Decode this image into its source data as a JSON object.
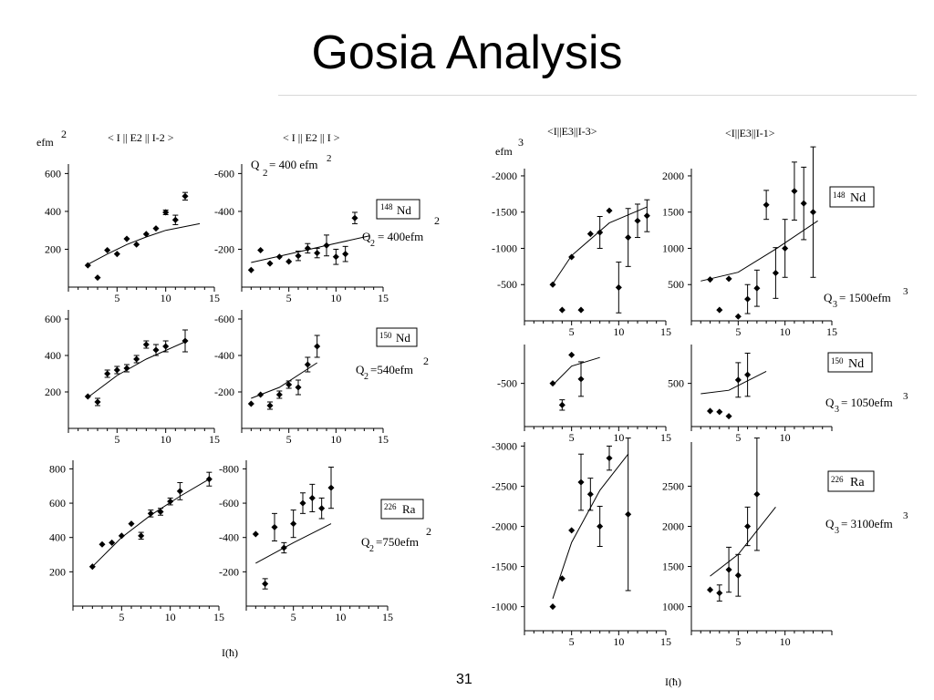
{
  "slide": {
    "title": "Gosia Analysis",
    "page_number": "31"
  },
  "chart_data": [
    {
      "id": "e2_I-2_148",
      "type": "scatter",
      "panel_title": "< I || E2 || I-2 >",
      "unit": "efm",
      "unit_power": "2",
      "x_ticks": [
        "5",
        "10",
        "15"
      ],
      "y_ticks": [
        "600",
        "400",
        "200"
      ],
      "xlim": [
        0,
        15
      ],
      "ylim": [
        0,
        650
      ],
      "points": [
        [
          2,
          115
        ],
        [
          3,
          50
        ],
        [
          4,
          195
        ],
        [
          5,
          175
        ],
        [
          6,
          255
        ],
        [
          7,
          225
        ],
        [
          8,
          280
        ],
        [
          9,
          310
        ],
        [
          10,
          395
        ],
        [
          11,
          355
        ],
        [
          12,
          480
        ]
      ],
      "errors": [
        0,
        0,
        0,
        0,
        0,
        0,
        0,
        0,
        12,
        25,
        20
      ],
      "curve": [
        [
          2,
          120
        ],
        [
          4,
          175
        ],
        [
          6,
          225
        ],
        [
          8,
          265
        ],
        [
          10,
          300
        ],
        [
          13.5,
          335
        ]
      ]
    },
    {
      "id": "e2_I_148",
      "type": "scatter",
      "panel_title": "< I || E2 || I >",
      "q_value": "Q 2 = 400 efm 2",
      "x_ticks": [
        "5",
        "10",
        "15"
      ],
      "y_ticks": [
        "-600",
        "-400",
        "-200"
      ],
      "xlim": [
        0,
        15
      ],
      "ylim": [
        0,
        -650
      ],
      "points": [
        [
          1,
          -90
        ],
        [
          2,
          -195
        ],
        [
          3,
          -125
        ],
        [
          4,
          -160
        ],
        [
          5,
          -135
        ],
        [
          6,
          -165
        ],
        [
          7,
          -205
        ],
        [
          8,
          -180
        ],
        [
          9,
          -220
        ],
        [
          10,
          -160
        ],
        [
          11,
          -175
        ],
        [
          12,
          -365
        ]
      ],
      "errors": [
        0,
        0,
        0,
        0,
        0,
        25,
        25,
        25,
        55,
        40,
        40,
        30
      ],
      "curve": [
        [
          1,
          -130
        ],
        [
          5,
          -175
        ],
        [
          9,
          -220
        ],
        [
          13.5,
          -270
        ]
      ]
    },
    {
      "id": "e2_I-2_150",
      "type": "scatter",
      "unit": "",
      "x_ticks": [
        "5",
        "10",
        "15"
      ],
      "y_ticks": [
        "600",
        "400",
        "200"
      ],
      "xlim": [
        0,
        15
      ],
      "ylim": [
        0,
        650
      ],
      "points": [
        [
          2,
          175
        ],
        [
          3,
          145
        ],
        [
          4,
          300
        ],
        [
          5,
          320
        ],
        [
          6,
          330
        ],
        [
          7,
          380
        ],
        [
          8,
          460
        ],
        [
          9,
          430
        ],
        [
          10,
          450
        ],
        [
          12,
          480
        ]
      ],
      "errors": [
        0,
        20,
        20,
        20,
        20,
        20,
        20,
        30,
        30,
        60
      ],
      "curve": [
        [
          2,
          170
        ],
        [
          5,
          290
        ],
        [
          8,
          380
        ],
        [
          12,
          475
        ]
      ]
    },
    {
      "id": "e2_I_150",
      "type": "scatter",
      "x_ticks": [
        "5",
        "10",
        "15"
      ],
      "y_ticks": [
        "-600",
        "-400",
        "-200"
      ],
      "xlim": [
        0,
        15
      ],
      "ylim": [
        0,
        -650
      ],
      "points": [
        [
          1,
          -135
        ],
        [
          2,
          -185
        ],
        [
          3,
          -125
        ],
        [
          4,
          -185
        ],
        [
          5,
          -240
        ],
        [
          6,
          -225
        ],
        [
          7,
          -350
        ],
        [
          8,
          -450
        ]
      ],
      "errors": [
        0,
        0,
        20,
        20,
        20,
        40,
        40,
        60
      ],
      "curve": [
        [
          1,
          -165
        ],
        [
          4,
          -225
        ],
        [
          8,
          -360
        ]
      ]
    },
    {
      "id": "e2_I-2_226",
      "type": "scatter",
      "x_ticks": [
        "5",
        "10",
        "15"
      ],
      "y_ticks": [
        "800",
        "600",
        "400",
        "200"
      ],
      "xlim": [
        0,
        15
      ],
      "ylim": [
        0,
        850
      ],
      "points": [
        [
          2,
          230
        ],
        [
          3,
          360
        ],
        [
          4,
          370
        ],
        [
          5,
          410
        ],
        [
          6,
          480
        ],
        [
          7,
          410
        ],
        [
          8,
          540
        ],
        [
          9,
          550
        ],
        [
          10,
          610
        ],
        [
          11,
          670
        ],
        [
          14,
          740
        ]
      ],
      "errors": [
        0,
        0,
        0,
        0,
        0,
        20,
        20,
        20,
        20,
        50,
        40
      ],
      "curve": [
        [
          2,
          230
        ],
        [
          5,
          400
        ],
        [
          8,
          530
        ],
        [
          11,
          640
        ],
        [
          14,
          740
        ]
      ]
    },
    {
      "id": "e2_I_226",
      "type": "scatter",
      "x_ticks": [
        "5",
        "10",
        "15"
      ],
      "y_ticks": [
        "-800",
        "-600",
        "-400",
        "-200"
      ],
      "xlim": [
        0,
        15
      ],
      "ylim": [
        0,
        -850
      ],
      "points": [
        [
          1,
          -420
        ],
        [
          2,
          -130
        ],
        [
          3,
          -460
        ],
        [
          4,
          -340
        ],
        [
          5,
          -480
        ],
        [
          6,
          -600
        ],
        [
          7,
          -630
        ],
        [
          8,
          -570
        ],
        [
          9,
          -690
        ]
      ],
      "errors": [
        0,
        30,
        80,
        30,
        80,
        60,
        80,
        60,
        120
      ],
      "curve": [
        [
          1,
          -250
        ],
        [
          5,
          -370
        ],
        [
          9,
          -480
        ]
      ]
    },
    {
      "id": "e3_I-3_148",
      "type": "scatter",
      "panel_title": "<I||E3||I-3>",
      "unit": "efm",
      "unit_power": "3",
      "x_ticks": [
        "5",
        "10",
        "15"
      ],
      "y_ticks": [
        "-2000",
        "-1500",
        "-1000",
        "-500"
      ],
      "xlim": [
        0,
        15
      ],
      "ylim": [
        0,
        -2100
      ],
      "points": [
        [
          3,
          -500
        ],
        [
          4,
          -150
        ],
        [
          5,
          -880
        ],
        [
          6,
          -150
        ],
        [
          7,
          -1200
        ],
        [
          8,
          -1220
        ],
        [
          9,
          -1520
        ],
        [
          10,
          -460
        ],
        [
          11,
          -1150
        ],
        [
          12,
          -1380
        ],
        [
          13,
          -1450
        ]
      ],
      "errors": [
        0,
        0,
        0,
        0,
        0,
        220,
        0,
        350,
        400,
        230,
        220
      ],
      "curve": [
        [
          3,
          -510
        ],
        [
          5,
          -900
        ],
        [
          9,
          -1350
        ],
        [
          13,
          -1570
        ]
      ]
    },
    {
      "id": "e3_I-1_148",
      "type": "scatter",
      "panel_title": "<I||E3||I-1>",
      "x_ticks": [
        "5",
        "10",
        "15"
      ],
      "y_ticks": [
        "2000",
        "1500",
        "1000",
        "500"
      ],
      "xlim": [
        0,
        15
      ],
      "ylim": [
        0,
        2100
      ],
      "points": [
        [
          2,
          570
        ],
        [
          3,
          150
        ],
        [
          4,
          580
        ],
        [
          5,
          60
        ],
        [
          6,
          300
        ],
        [
          7,
          450
        ],
        [
          8,
          1600
        ],
        [
          9,
          660
        ],
        [
          10,
          1000
        ],
        [
          11,
          1790
        ],
        [
          12,
          1620
        ],
        [
          13,
          1500
        ]
      ],
      "errors": [
        0,
        0,
        0,
        0,
        200,
        250,
        200,
        350,
        400,
        400,
        500,
        900
      ],
      "curve": [
        [
          1,
          550
        ],
        [
          5,
          670
        ],
        [
          9,
          990
        ],
        [
          13.5,
          1380
        ]
      ]
    },
    {
      "id": "e3_I-3_150",
      "type": "scatter",
      "x_ticks": [
        "5",
        "10",
        "15"
      ],
      "y_ticks": [
        "-500"
      ],
      "xlim": [
        0,
        15
      ],
      "ylim": [
        0,
        -950
      ],
      "points": [
        [
          3,
          -500
        ],
        [
          4,
          -250
        ],
        [
          5,
          -830
        ],
        [
          6,
          -550
        ]
      ],
      "errors": [
        0,
        60,
        0,
        200
      ],
      "curve": [
        [
          3,
          -480
        ],
        [
          5,
          -700
        ],
        [
          8,
          -800
        ]
      ]
    },
    {
      "id": "e3_I-1_150",
      "type": "scatter",
      "x_ticks": [
        "5",
        "10"
      ],
      "y_ticks": [
        "500"
      ],
      "xlim": [
        0,
        15
      ],
      "ylim": [
        0,
        950
      ],
      "points": [
        [
          2,
          180
        ],
        [
          3,
          170
        ],
        [
          4,
          120
        ],
        [
          5,
          540
        ],
        [
          6,
          600
        ]
      ],
      "errors": [
        0,
        0,
        0,
        200,
        250
      ],
      "curve": [
        [
          1,
          380
        ],
        [
          4,
          420
        ],
        [
          8,
          640
        ]
      ]
    },
    {
      "id": "e3_I-3_226",
      "type": "scatter",
      "x_ticks": [
        "5",
        "10",
        "15"
      ],
      "y_ticks": [
        "-3000",
        "-2500",
        "-2000",
        "-1500",
        "-1000"
      ],
      "xlim": [
        0,
        15
      ],
      "ylim": [
        -700,
        -3050
      ],
      "points": [
        [
          3,
          -1000
        ],
        [
          4,
          -1350
        ],
        [
          5,
          -1950
        ],
        [
          6,
          -2550
        ],
        [
          7,
          -2400
        ],
        [
          8,
          -2000
        ],
        [
          9,
          -2850
        ],
        [
          11,
          -2150
        ]
      ],
      "errors": [
        0,
        0,
        0,
        350,
        200,
        250,
        150,
        950
      ],
      "curve": [
        [
          3,
          -1100
        ],
        [
          5,
          -1800
        ],
        [
          8,
          -2450
        ],
        [
          11,
          -2900
        ]
      ]
    },
    {
      "id": "e3_I-1_226",
      "type": "scatter",
      "x_ticks": [
        "5",
        "10"
      ],
      "y_ticks": [
        "2500",
        "2000",
        "1500",
        "1000"
      ],
      "xlim": [
        0,
        15
      ],
      "ylim": [
        700,
        3050
      ],
      "points": [
        [
          2,
          1210
        ],
        [
          3,
          1170
        ],
        [
          4,
          1460
        ],
        [
          5,
          1390
        ],
        [
          6,
          2000
        ],
        [
          7,
          2400
        ]
      ],
      "errors": [
        0,
        100,
        280,
        260,
        240,
        700
      ],
      "curve": [
        [
          2,
          1380
        ],
        [
          5,
          1650
        ],
        [
          9,
          2240
        ]
      ]
    }
  ],
  "labels": {
    "efm2": "efm",
    "pow2": "2",
    "efm3": "efm",
    "pow3": "3",
    "axis_x": "I(ħ)",
    "axis_x2": "I(ħ)",
    "nd148": "Nd",
    "nd148_mass": "148",
    "nd150": "Nd",
    "nd150_mass": "150",
    "ra226": "Ra",
    "ra226_mass": "226",
    "q2_148": "Q",
    "q2_148_sub": "2",
    "q2_148_val": "= 400efm",
    "q2_148_pow": "2",
    "q2_150": "Q",
    "q2_150_sub": "2",
    "q2_150_val": "=540efm",
    "q2_150_pow": "2",
    "q2_226": "Q",
    "q2_226_sub": "2",
    "q2_226_val": "=750efm",
    "q2_226_pow": "2",
    "q2_top": "Q",
    "q2_top_sub": "2",
    "q2_top_val": "= 400 efm",
    "q2_top_pow": "2",
    "q3_148": "Q",
    "q3_148_sub": "3",
    "q3_148_val": "= 1500efm",
    "q3_148_pow": "3",
    "q3_150": "Q",
    "q3_150_sub": "3",
    "q3_150_val": "= 1050efm",
    "q3_150_pow": "3",
    "q3_226": "Q",
    "q3_226_sub": "3",
    "q3_226_val": "= 3100efm",
    "q3_226_pow": "3",
    "panel_e2_left": "< I || E2 || I-2 >",
    "panel_e2_right": "< I || E2 || I >",
    "panel_e3_left": "<I||E3||I-3>",
    "panel_e3_right": "<I||E3||I-1>"
  }
}
